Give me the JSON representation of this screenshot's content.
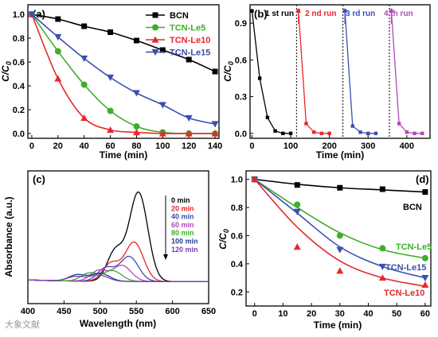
{
  "colors": {
    "black": "#000000",
    "green": "#3fae2a",
    "red": "#e8272a",
    "blue": "#3b4fb0",
    "purple": "#b04ab8",
    "magenta": "#9a3fb2",
    "cyan_blue": "#1f7fd6",
    "gray": "#555555"
  },
  "chart_data": [
    {
      "panel": "(a)",
      "type": "line",
      "xlabel": "Time (min)",
      "ylabel": "C/C0",
      "xlim": [
        -3,
        143
      ],
      "ylim": [
        -0.04,
        1.08
      ],
      "xticks": [
        "0",
        "20",
        "40",
        "60",
        "80",
        "100",
        "120",
        "140"
      ],
      "yticks": [
        "0.0",
        "0.2",
        "0.4",
        "0.6",
        "0.8",
        "1.0"
      ],
      "legend": "top-right",
      "series": [
        {
          "name": "BCN",
          "color": "#000000",
          "marker": "square",
          "x": [
            0,
            20,
            40,
            60,
            80,
            100,
            120,
            140
          ],
          "y": [
            1.0,
            0.96,
            0.9,
            0.85,
            0.78,
            0.7,
            0.62,
            0.52
          ]
        },
        {
          "name": "TCN-Le5",
          "color": "#3fae2a",
          "marker": "circle",
          "x": [
            0,
            20,
            40,
            60,
            80,
            100,
            120,
            140
          ],
          "y": [
            1.0,
            0.69,
            0.41,
            0.19,
            0.06,
            0.01,
            0.0,
            0.0
          ]
        },
        {
          "name": "TCN-Le10",
          "color": "#e8272a",
          "marker": "triangle-up",
          "x": [
            0,
            20,
            40,
            60,
            80,
            100,
            120,
            140
          ],
          "y": [
            1.0,
            0.46,
            0.13,
            0.03,
            0.01,
            0.0,
            0.0,
            0.0
          ]
        },
        {
          "name": "TCN-Le15",
          "color": "#3b4fb0",
          "marker": "triangle-down",
          "x": [
            0,
            20,
            40,
            60,
            80,
            100,
            120,
            140
          ],
          "y": [
            1.0,
            0.81,
            0.63,
            0.47,
            0.34,
            0.24,
            0.13,
            0.08
          ]
        }
      ]
    },
    {
      "panel": "(b)",
      "type": "line",
      "xlabel": "Time (min)",
      "ylabel": "C/C0",
      "xlim": [
        -5,
        460
      ],
      "ylim": [
        -0.04,
        1.05
      ],
      "xticks": [
        "0",
        "100",
        "200",
        "300",
        "400"
      ],
      "yticks": [
        "0.0",
        "0.3",
        "0.6",
        "0.9"
      ],
      "run_labels": [
        {
          "text": "1 st run",
          "color": "#000000"
        },
        {
          "text": "2 nd run",
          "color": "#e8272a"
        },
        {
          "text": "3 rd run",
          "color": "#3b4fb0"
        },
        {
          "text": "4 th run",
          "color": "#b04ab8"
        }
      ],
      "run_separators_x": [
        115,
        235,
        355
      ],
      "series": [
        {
          "color": "#000000",
          "x": [
            0,
            20,
            40,
            60,
            80,
            100
          ],
          "y": [
            1.0,
            0.45,
            0.13,
            0.02,
            0.0,
            0.0
          ]
        },
        {
          "color": "#e8272a",
          "x": [
            120,
            140,
            160,
            180,
            200
          ],
          "y": [
            1.0,
            0.08,
            0.01,
            0.0,
            0.0
          ]
        },
        {
          "color": "#3b4fb0",
          "x": [
            240,
            260,
            280,
            300,
            320
          ],
          "y": [
            1.0,
            0.06,
            0.01,
            0.0,
            0.0
          ]
        },
        {
          "color": "#b04ab8",
          "x": [
            360,
            380,
            400,
            420,
            440
          ],
          "y": [
            1.0,
            0.08,
            0.01,
            0.0,
            0.0
          ]
        }
      ]
    },
    {
      "panel": "(c)",
      "type": "line",
      "xlabel": "Wavelength (nm)",
      "ylabel": "Absorbance (a.u.)",
      "xlim": [
        400,
        650
      ],
      "ylim": [
        0,
        1.1
      ],
      "xticks": [
        "400",
        "450",
        "500",
        "550",
        "600",
        "650"
      ],
      "legend": "top-right",
      "series": [
        {
          "name": "0 min",
          "color": "#000000",
          "peak": 1.0,
          "peak_x": 553,
          "shoulder": 0.34
        },
        {
          "name": "20 min",
          "color": "#e8272a",
          "peak": 0.44,
          "peak_x": 547,
          "shoulder": 0.2
        },
        {
          "name": "40 min",
          "color": "#3b4fb0",
          "peak": 0.28,
          "peak_x": 540,
          "shoulder": 0.15
        },
        {
          "name": "60 min",
          "color": "#b04ab8",
          "peak": 0.18,
          "peak_x": 530,
          "shoulder": 0.12
        },
        {
          "name": "80 min",
          "color": "#3fae2a",
          "peak": 0.12,
          "peak_x": 517,
          "shoulder": 0.09
        },
        {
          "name": "100 min",
          "color": "#1f3f8f",
          "peak": 0.09,
          "peak_x": 500,
          "shoulder": 0.07
        },
        {
          "name": "120 min",
          "color": "#7a3fb2",
          "peak": 0.07,
          "peak_x": 498,
          "shoulder": 0.05
        }
      ]
    },
    {
      "panel": "(d)",
      "type": "line",
      "xlabel": "Time (min)",
      "ylabel": "C/C0",
      "xlim": [
        -3,
        62
      ],
      "ylim": [
        0.1,
        1.06
      ],
      "xticks": [
        "0",
        "10",
        "20",
        "30",
        "40",
        "50",
        "60"
      ],
      "yticks": [
        "0.2",
        "0.4",
        "0.6",
        "0.8",
        "1.0"
      ],
      "series": [
        {
          "name": "BCN",
          "color": "#000000",
          "marker": "square",
          "x": [
            0,
            15,
            30,
            45,
            60
          ],
          "y": [
            1.0,
            0.96,
            0.94,
            0.93,
            0.91
          ]
        },
        {
          "name": "TCN-Le5",
          "color": "#3fae2a",
          "marker": "circle",
          "x": [
            0,
            15,
            30,
            45,
            60
          ],
          "y": [
            1.0,
            0.82,
            0.6,
            0.51,
            0.44
          ]
        },
        {
          "name": "TCN-Le15",
          "color": "#3b4fb0",
          "marker": "triangle-down",
          "x": [
            0,
            15,
            30,
            45,
            60
          ],
          "y": [
            1.0,
            0.77,
            0.5,
            0.38,
            0.3
          ]
        },
        {
          "name": "TCN-Le10",
          "color": "#e8272a",
          "marker": "triangle-up",
          "x": [
            0,
            15,
            30,
            45,
            60
          ],
          "y": [
            1.0,
            0.52,
            0.35,
            0.3,
            0.25
          ]
        }
      ],
      "fit_curves": {
        "BCN": [
          1.0,
          0.965,
          0.94,
          0.925,
          0.91
        ],
        "TCN-Le5": [
          1.0,
          0.8,
          0.62,
          0.5,
          0.44
        ],
        "TCN-Le15": [
          1.0,
          0.76,
          0.52,
          0.38,
          0.3
        ],
        "TCN-Le10": [
          1.0,
          0.66,
          0.42,
          0.3,
          0.24
        ]
      }
    }
  ],
  "watermark": "大象文献"
}
